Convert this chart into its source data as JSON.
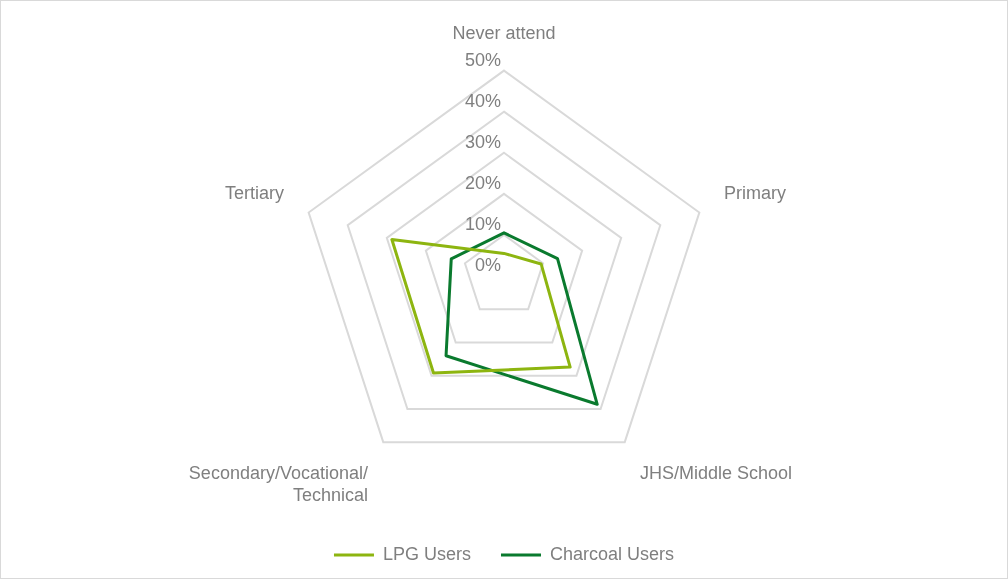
{
  "chart_data": {
    "type": "radar",
    "categories": [
      "Never attend",
      "Primary",
      "JHS/Middle School",
      "Secondary/Vocational/ Technical",
      "Tertiary"
    ],
    "series": [
      {
        "name": "LPG Users",
        "color": "#8db510",
        "values": [
          5.5,
          9.5,
          27.4,
          29.2,
          28.7
        ]
      },
      {
        "name": "Charcoal Users",
        "color": "#0a7a2e",
        "values": [
          10.5,
          13.7,
          38.6,
          24,
          13.5
        ]
      }
    ],
    "ylim": [
      0,
      50
    ],
    "yticks": [
      {
        "value": 0,
        "label": "0%"
      },
      {
        "value": 10,
        "label": "10%"
      },
      {
        "value": 20,
        "label": "20%"
      },
      {
        "value": 30,
        "label": "30%"
      },
      {
        "value": 40,
        "label": "40%"
      },
      {
        "value": 50,
        "label": "50%"
      }
    ],
    "grid": true,
    "legend": "bottom",
    "marker": "none"
  }
}
